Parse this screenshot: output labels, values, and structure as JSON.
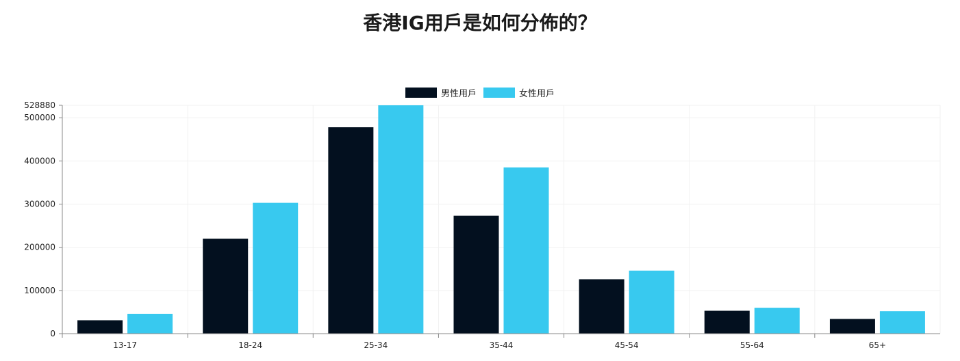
{
  "chart_data": {
    "type": "bar",
    "title": "香港IG用戶是如何分佈的？",
    "categories": [
      "13-17",
      "18-24",
      "25-34",
      "35-44",
      "45-54",
      "55-64",
      "65+"
    ],
    "series": [
      {
        "name": "男性用戶",
        "color": "#03101f",
        "values": [
          31000,
          220000,
          478000,
          273000,
          126000,
          53000,
          34000
        ]
      },
      {
        "name": "女性用戶",
        "color": "#38c9ef",
        "values": [
          46000,
          303000,
          528880,
          385000,
          146000,
          60000,
          52000
        ]
      }
    ],
    "ylim": [
      0,
      528880
    ],
    "yticks": [
      "0",
      "100000",
      "200000",
      "300000",
      "400000",
      "500000",
      "528880"
    ],
    "ytick_values": [
      0,
      100000,
      200000,
      300000,
      400000,
      500000,
      528880
    ],
    "legend_position": "top-center",
    "grid": true
  }
}
